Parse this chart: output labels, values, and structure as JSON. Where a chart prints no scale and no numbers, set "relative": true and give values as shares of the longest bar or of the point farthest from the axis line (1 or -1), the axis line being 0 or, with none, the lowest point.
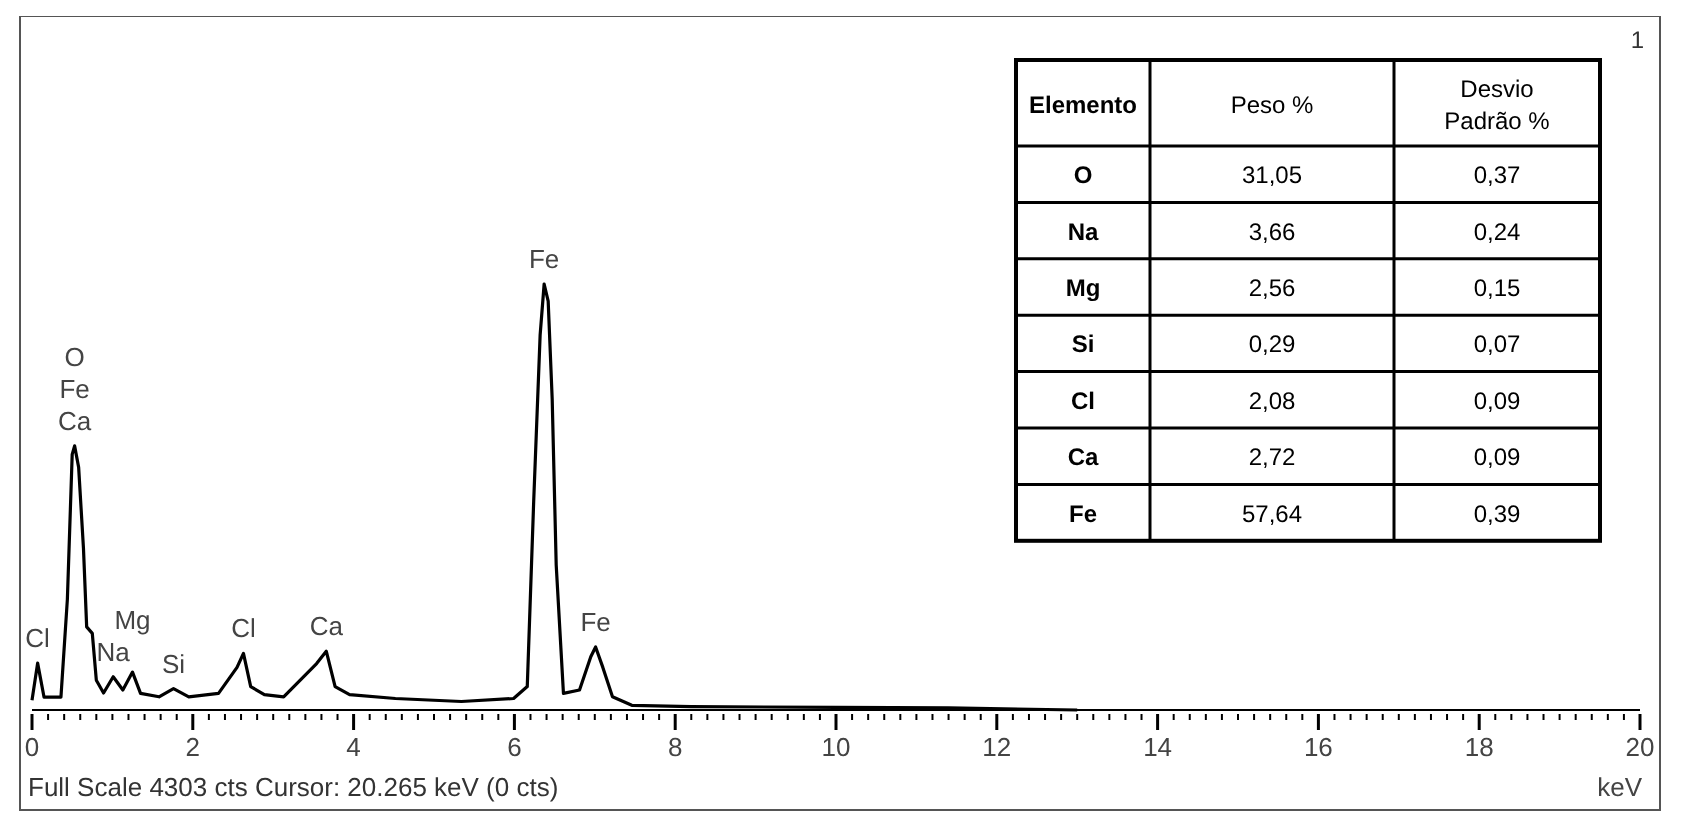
{
  "chart_data": [
    {
      "type": "line",
      "relative": true,
      "xlabel": "keV",
      "xlim": [
        0,
        20
      ],
      "xticks": [
        0,
        {
          "value": 0.2,
          "label": null
        },
        {
          "value": 0.4,
          "label": null
        },
        {
          "value": 0.6,
          "label": null
        },
        {
          "value": 0.8,
          "label": null
        },
        {
          "value": 1,
          "label": null
        },
        {
          "value": 1.2,
          "label": null
        },
        {
          "value": 1.4,
          "label": null
        },
        {
          "value": 1.6,
          "label": null
        },
        {
          "value": 1.8,
          "label": null
        },
        2,
        {
          "value": 2.2,
          "label": null
        },
        {
          "value": 2.4,
          "label": null
        },
        {
          "value": 2.6,
          "label": null
        },
        {
          "value": 2.8,
          "label": null
        },
        {
          "value": 3,
          "label": null
        },
        {
          "value": 3.2,
          "label": null
        },
        {
          "value": 3.4,
          "label": null
        },
        {
          "value": 3.6,
          "label": null
        },
        {
          "value": 3.8,
          "label": null
        },
        4,
        {
          "value": 4.2,
          "label": null
        },
        {
          "value": 4.4,
          "label": null
        },
        {
          "value": 4.6,
          "label": null
        },
        {
          "value": 4.8,
          "label": null
        },
        {
          "value": 5,
          "label": null
        },
        {
          "value": 5.2,
          "label": null
        },
        {
          "value": 5.4,
          "label": null
        },
        {
          "value": 5.6,
          "label": null
        },
        {
          "value": 5.8,
          "label": null
        },
        6,
        {
          "value": 6.2,
          "label": null
        },
        {
          "value": 6.4,
          "label": null
        },
        {
          "value": 6.6,
          "label": null
        },
        {
          "value": 6.8,
          "label": null
        },
        {
          "value": 7,
          "label": null
        },
        {
          "value": 7.2,
          "label": null
        },
        {
          "value": 7.4,
          "label": null
        },
        {
          "value": 7.6,
          "label": null
        },
        {
          "value": 7.8,
          "label": null
        },
        8,
        {
          "value": 8.2,
          "label": null
        },
        {
          "value": 8.4,
          "label": null
        },
        {
          "value": 8.6,
          "label": null
        },
        {
          "value": 8.8,
          "label": null
        },
        {
          "value": 9,
          "label": null
        },
        {
          "value": 9.2,
          "label": null
        },
        {
          "value": 9.4,
          "label": null
        },
        {
          "value": 9.6,
          "label": null
        },
        {
          "value": 9.8,
          "label": null
        },
        10,
        {
          "value": 10.2,
          "label": null
        },
        {
          "value": 10.4,
          "label": null
        },
        {
          "value": 10.6,
          "label": null
        },
        {
          "value": 10.8,
          "label": null
        },
        {
          "value": 11,
          "label": null
        },
        {
          "value": 11.2,
          "label": null
        },
        {
          "value": 11.4,
          "label": null
        },
        {
          "value": 11.6,
          "label": null
        },
        {
          "value": 11.8,
          "label": null
        },
        12,
        {
          "value": 12.2,
          "label": null
        },
        {
          "value": 12.4,
          "label": null
        },
        {
          "value": 12.6,
          "label": null
        },
        {
          "value": 12.8,
          "label": null
        },
        {
          "value": 13,
          "label": null
        },
        {
          "value": 13.2,
          "label": null
        },
        {
          "value": 13.4,
          "label": null
        },
        {
          "value": 13.6,
          "label": null
        },
        {
          "value": 13.8,
          "label": null
        },
        14,
        {
          "value": 14.2,
          "label": null
        },
        {
          "value": 14.4,
          "label": null
        },
        {
          "value": 14.6,
          "label": null
        },
        {
          "value": 14.8,
          "label": null
        },
        {
          "value": 15,
          "label": null
        },
        {
          "value": 15.2,
          "label": null
        },
        {
          "value": 15.4,
          "label": null
        },
        {
          "value": 15.6,
          "label": null
        },
        {
          "value": 15.8,
          "label": null
        },
        16,
        {
          "value": 16.2,
          "label": null
        },
        {
          "value": 16.4,
          "label": null
        },
        {
          "value": 16.6,
          "label": null
        },
        {
          "value": 16.8,
          "label": null
        },
        {
          "value": 17,
          "label": null
        },
        {
          "value": 17.2,
          "label": null
        },
        {
          "value": 17.4,
          "label": null
        },
        {
          "value": 17.6,
          "label": null
        },
        {
          "value": 17.8,
          "label": null
        },
        18,
        {
          "value": 18.2,
          "label": null
        },
        {
          "value": 18.4,
          "label": null
        },
        {
          "value": 18.6,
          "label": null
        },
        {
          "value": 18.8,
          "label": null
        },
        {
          "value": 19,
          "label": null
        },
        {
          "value": 19.2,
          "label": null
        },
        {
          "value": 19.4,
          "label": null
        },
        {
          "value": 19.6,
          "label": null
        },
        {
          "value": 19.8,
          "label": null
        },
        20
      ],
      "series": [
        {
          "color": "#000000",
          "x": [
            0,
            0.07,
            0.15,
            0.36,
            0.44,
            0.5,
            0.53,
            0.58,
            0.64,
            0.68,
            0.75,
            0.8,
            0.89,
            1.01,
            1.13,
            1.25,
            1.35,
            1.58,
            1.76,
            1.95,
            2.32,
            2.55,
            2.63,
            2.72,
            2.89,
            3.13,
            3.54,
            3.66,
            3.77,
            3.95,
            4.52,
            5.34,
            5.99,
            6.16,
            6.24,
            6.32,
            6.37,
            6.42,
            6.47,
            6.52,
            6.61,
            6.81,
            6.95,
            7.01,
            7.1,
            7.22,
            7.46,
            8.2,
            10,
            11.4,
            13
          ],
          "values": [
            0.023,
            0.11,
            0.03,
            0.03,
            0.26,
            0.6,
            0.62,
            0.57,
            0.38,
            0.195,
            0.18,
            0.07,
            0.04,
            0.078,
            0.047,
            0.089,
            0.039,
            0.031,
            0.05,
            0.031,
            0.039,
            0.1,
            0.133,
            0.055,
            0.036,
            0.031,
            0.109,
            0.138,
            0.055,
            0.036,
            0.027,
            0.02,
            0.027,
            0.055,
            0.49,
            0.88,
            1,
            0.96,
            0.73,
            0.34,
            0.039,
            0.047,
            0.125,
            0.148,
            0.1,
            0.031,
            0.011,
            0.008,
            0.006,
            0.005,
            0
          ]
        }
      ],
      "annotations": [
        {
          "text": "Cl",
          "x": 0.07,
          "y": 0.11
        },
        {
          "text": "Ca",
          "x": 0.53,
          "y": 0.62
        },
        {
          "text": "Fe",
          "x": 0.53,
          "y": 0.62
        },
        {
          "text": "O",
          "x": 0.53,
          "y": 0.62
        },
        {
          "text": "Na",
          "x": 1.01,
          "y": 0.078
        },
        {
          "text": "Mg",
          "x": 1.25,
          "y": 0.089
        },
        {
          "text": "Si",
          "x": 1.76,
          "y": 0.05
        },
        {
          "text": "Cl",
          "x": 2.63,
          "y": 0.133
        },
        {
          "text": "Ca",
          "x": 3.66,
          "y": 0.138
        },
        {
          "text": "Fe",
          "x": 6.37,
          "y": 1
        },
        {
          "text": "Fe",
          "x": 7.01,
          "y": 0.148
        },
        "Full Scale 4303 cts  Cursor: 20.265 keV (0 cts)",
        "1"
      ]
    },
    {
      "type": "other",
      "xlabel": "Elemento",
      "categories": [
        "O",
        "Na",
        "Mg",
        "Si",
        "Cl",
        "Ca",
        "Fe"
      ],
      "data_labels": true,
      "series": [
        {
          "name": "Peso %",
          "values": [
            31.05,
            3.66,
            2.56,
            0.29,
            2.08,
            2.72,
            57.64
          ],
          "value_labels": [
            "31,05",
            "3,66",
            "2,56",
            "0,29",
            "2,08",
            "2,72",
            "57,64"
          ]
        },
        {
          "name": "Desvio Padrão %",
          "values": [
            0.37,
            0.24,
            0.15,
            0.07,
            0.09,
            0.09,
            0.39
          ],
          "value_labels": [
            "0,37",
            "0,24",
            "0,15",
            "0,07",
            "0,09",
            "0,09",
            "0,39"
          ]
        }
      ]
    }
  ]
}
